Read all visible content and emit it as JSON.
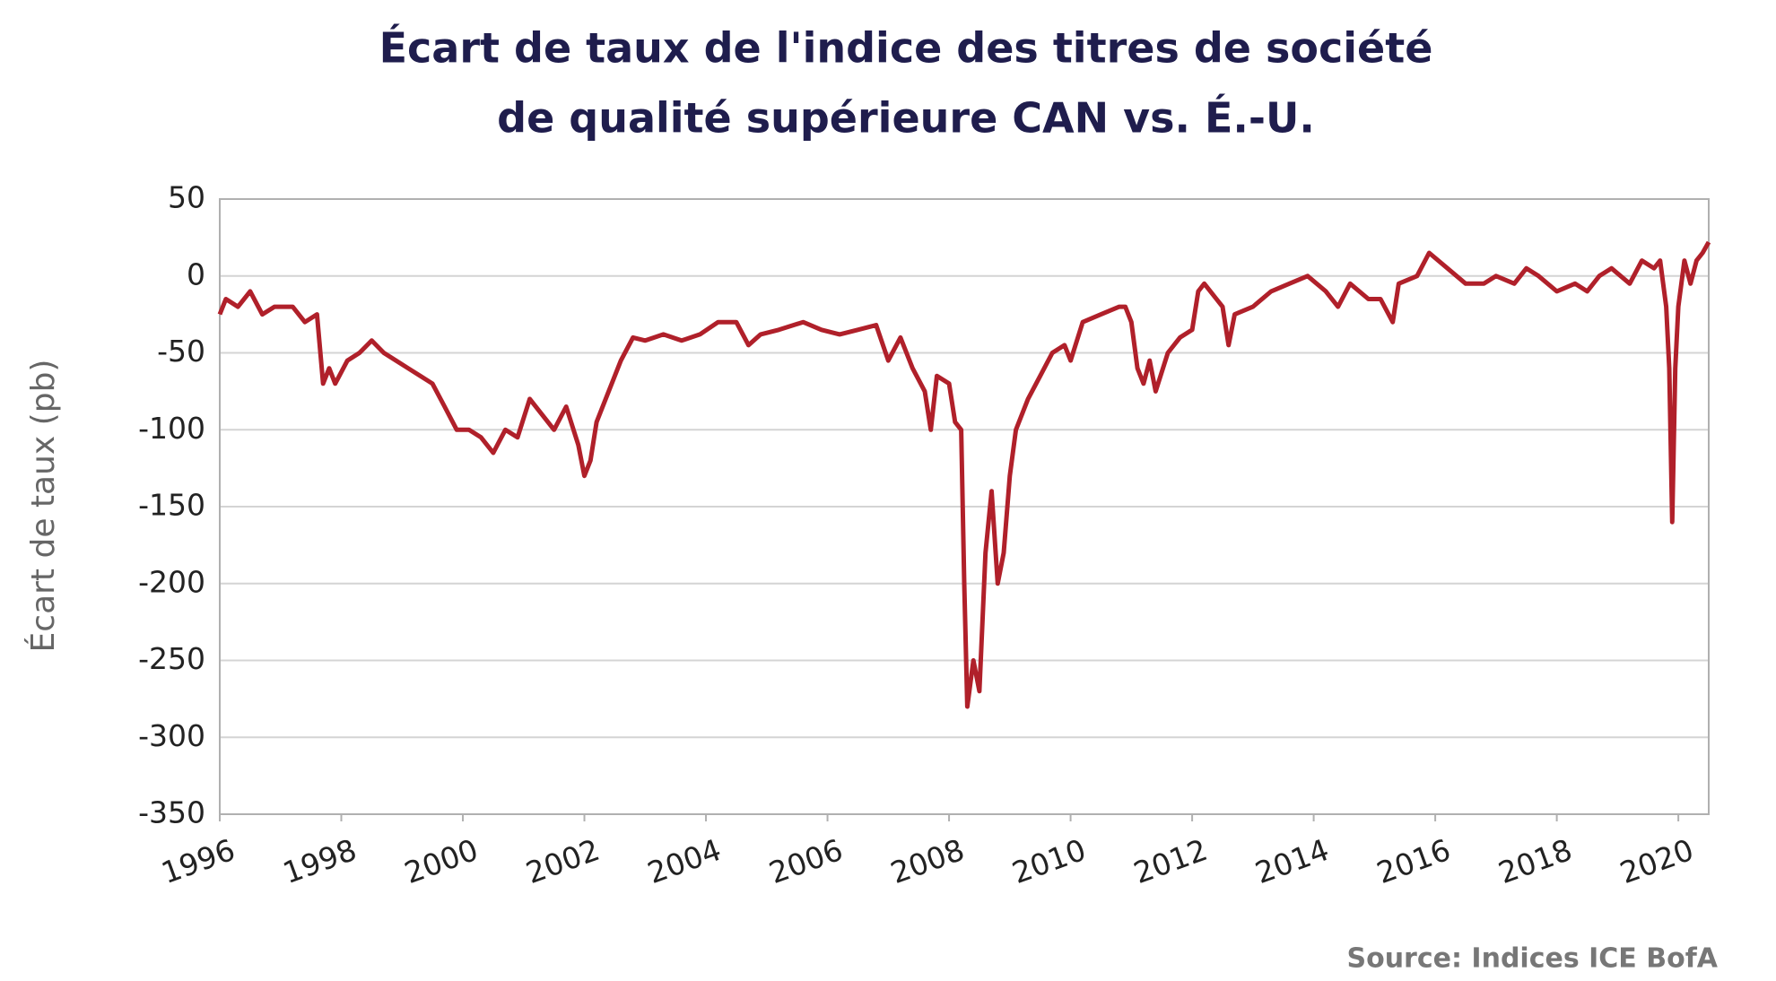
{
  "chart_data": {
    "type": "line",
    "title": [
      "Écart de taux de l'indice des titres de société",
      "de qualité supérieure CAN vs. É.-U."
    ],
    "y_label": "Écart de taux (pb)",
    "source": "Source: Indices ICE BofA",
    "xlim": [
      1996,
      2020.5
    ],
    "xticks": [
      1996,
      1998,
      2000,
      2002,
      2004,
      2006,
      2008,
      2010,
      2012,
      2014,
      2016,
      2018,
      2020
    ],
    "ylim": [
      -350,
      50
    ],
    "yticks": [
      50,
      0,
      -50,
      -100,
      -150,
      -200,
      -250,
      -300,
      -350
    ],
    "grid": true,
    "x": [
      1996.0,
      1996.1,
      1996.3,
      1996.5,
      1996.7,
      1996.9,
      1997.2,
      1997.4,
      1997.6,
      1997.7,
      1997.8,
      1997.9,
      1998.1,
      1998.3,
      1998.5,
      1998.7,
      1998.9,
      1999.1,
      1999.3,
      1999.5,
      1999.7,
      1999.9,
      2000.1,
      2000.3,
      2000.5,
      2000.7,
      2000.9,
      2001.1,
      2001.3,
      2001.5,
      2001.7,
      2001.9,
      2002.0,
      2002.1,
      2002.2,
      2002.4,
      2002.6,
      2002.8,
      2003.0,
      2003.3,
      2003.6,
      2003.9,
      2004.2,
      2004.5,
      2004.7,
      2004.9,
      2005.2,
      2005.6,
      2005.9,
      2006.2,
      2006.5,
      2006.8,
      2007.0,
      2007.2,
      2007.4,
      2007.6,
      2007.7,
      2007.8,
      2008.0,
      2008.1,
      2008.2,
      2008.25,
      2008.3,
      2008.4,
      2008.5,
      2008.6,
      2008.7,
      2008.8,
      2008.9,
      2009.0,
      2009.1,
      2009.3,
      2009.5,
      2009.7,
      2009.9,
      2010.0,
      2010.2,
      2010.5,
      2010.8,
      2010.9,
      2011.0,
      2011.1,
      2011.2,
      2011.3,
      2011.4,
      2011.6,
      2011.8,
      2012.0,
      2012.1,
      2012.2,
      2012.4,
      2012.5,
      2012.6,
      2012.7,
      2013.0,
      2013.3,
      2013.6,
      2013.9,
      2014.2,
      2014.4,
      2014.6,
      2014.9,
      2015.1,
      2015.3,
      2015.4,
      2015.7,
      2015.9,
      2016.2,
      2016.5,
      2016.8,
      2017.0,
      2017.3,
      2017.5,
      2017.7,
      2018.0,
      2018.3,
      2018.5,
      2018.7,
      2018.9,
      2019.2,
      2019.4,
      2019.6,
      2019.7,
      2019.8,
      2019.85,
      2019.9,
      2019.95,
      2020.0,
      2020.1,
      2020.2,
      2020.3,
      2020.4,
      2020.5
    ],
    "series": [
      {
        "name": "Écart",
        "color": "#b0202a",
        "values": [
          -25,
          -15,
          -20,
          -10,
          -25,
          -20,
          -20,
          -30,
          -25,
          -70,
          -60,
          -70,
          -55,
          -50,
          -42,
          -50,
          -55,
          -60,
          -65,
          -70,
          -85,
          -100,
          -100,
          -105,
          -115,
          -100,
          -105,
          -80,
          -90,
          -100,
          -85,
          -110,
          -130,
          -120,
          -95,
          -75,
          -55,
          -40,
          -42,
          -38,
          -42,
          -38,
          -30,
          -30,
          -45,
          -38,
          -35,
          -30,
          -35,
          -38,
          -35,
          -32,
          -55,
          -40,
          -60,
          -75,
          -100,
          -65,
          -70,
          -95,
          -100,
          -200,
          -280,
          -250,
          -270,
          -180,
          -140,
          -200,
          -180,
          -130,
          -100,
          -80,
          -65,
          -50,
          -45,
          -55,
          -30,
          -25,
          -20,
          -20,
          -30,
          -60,
          -70,
          -55,
          -75,
          -50,
          -40,
          -35,
          -10,
          -5,
          -15,
          -20,
          -45,
          -25,
          -20,
          -10,
          -5,
          0,
          -10,
          -20,
          -5,
          -15,
          -15,
          -30,
          -5,
          0,
          15,
          5,
          -5,
          -5,
          0,
          -5,
          5,
          0,
          -10,
          -5,
          -10,
          0,
          5,
          -5,
          10,
          5,
          10,
          -20,
          -60,
          -160,
          -60,
          -20,
          10,
          -5,
          10,
          15,
          22
        ]
      }
    ]
  }
}
